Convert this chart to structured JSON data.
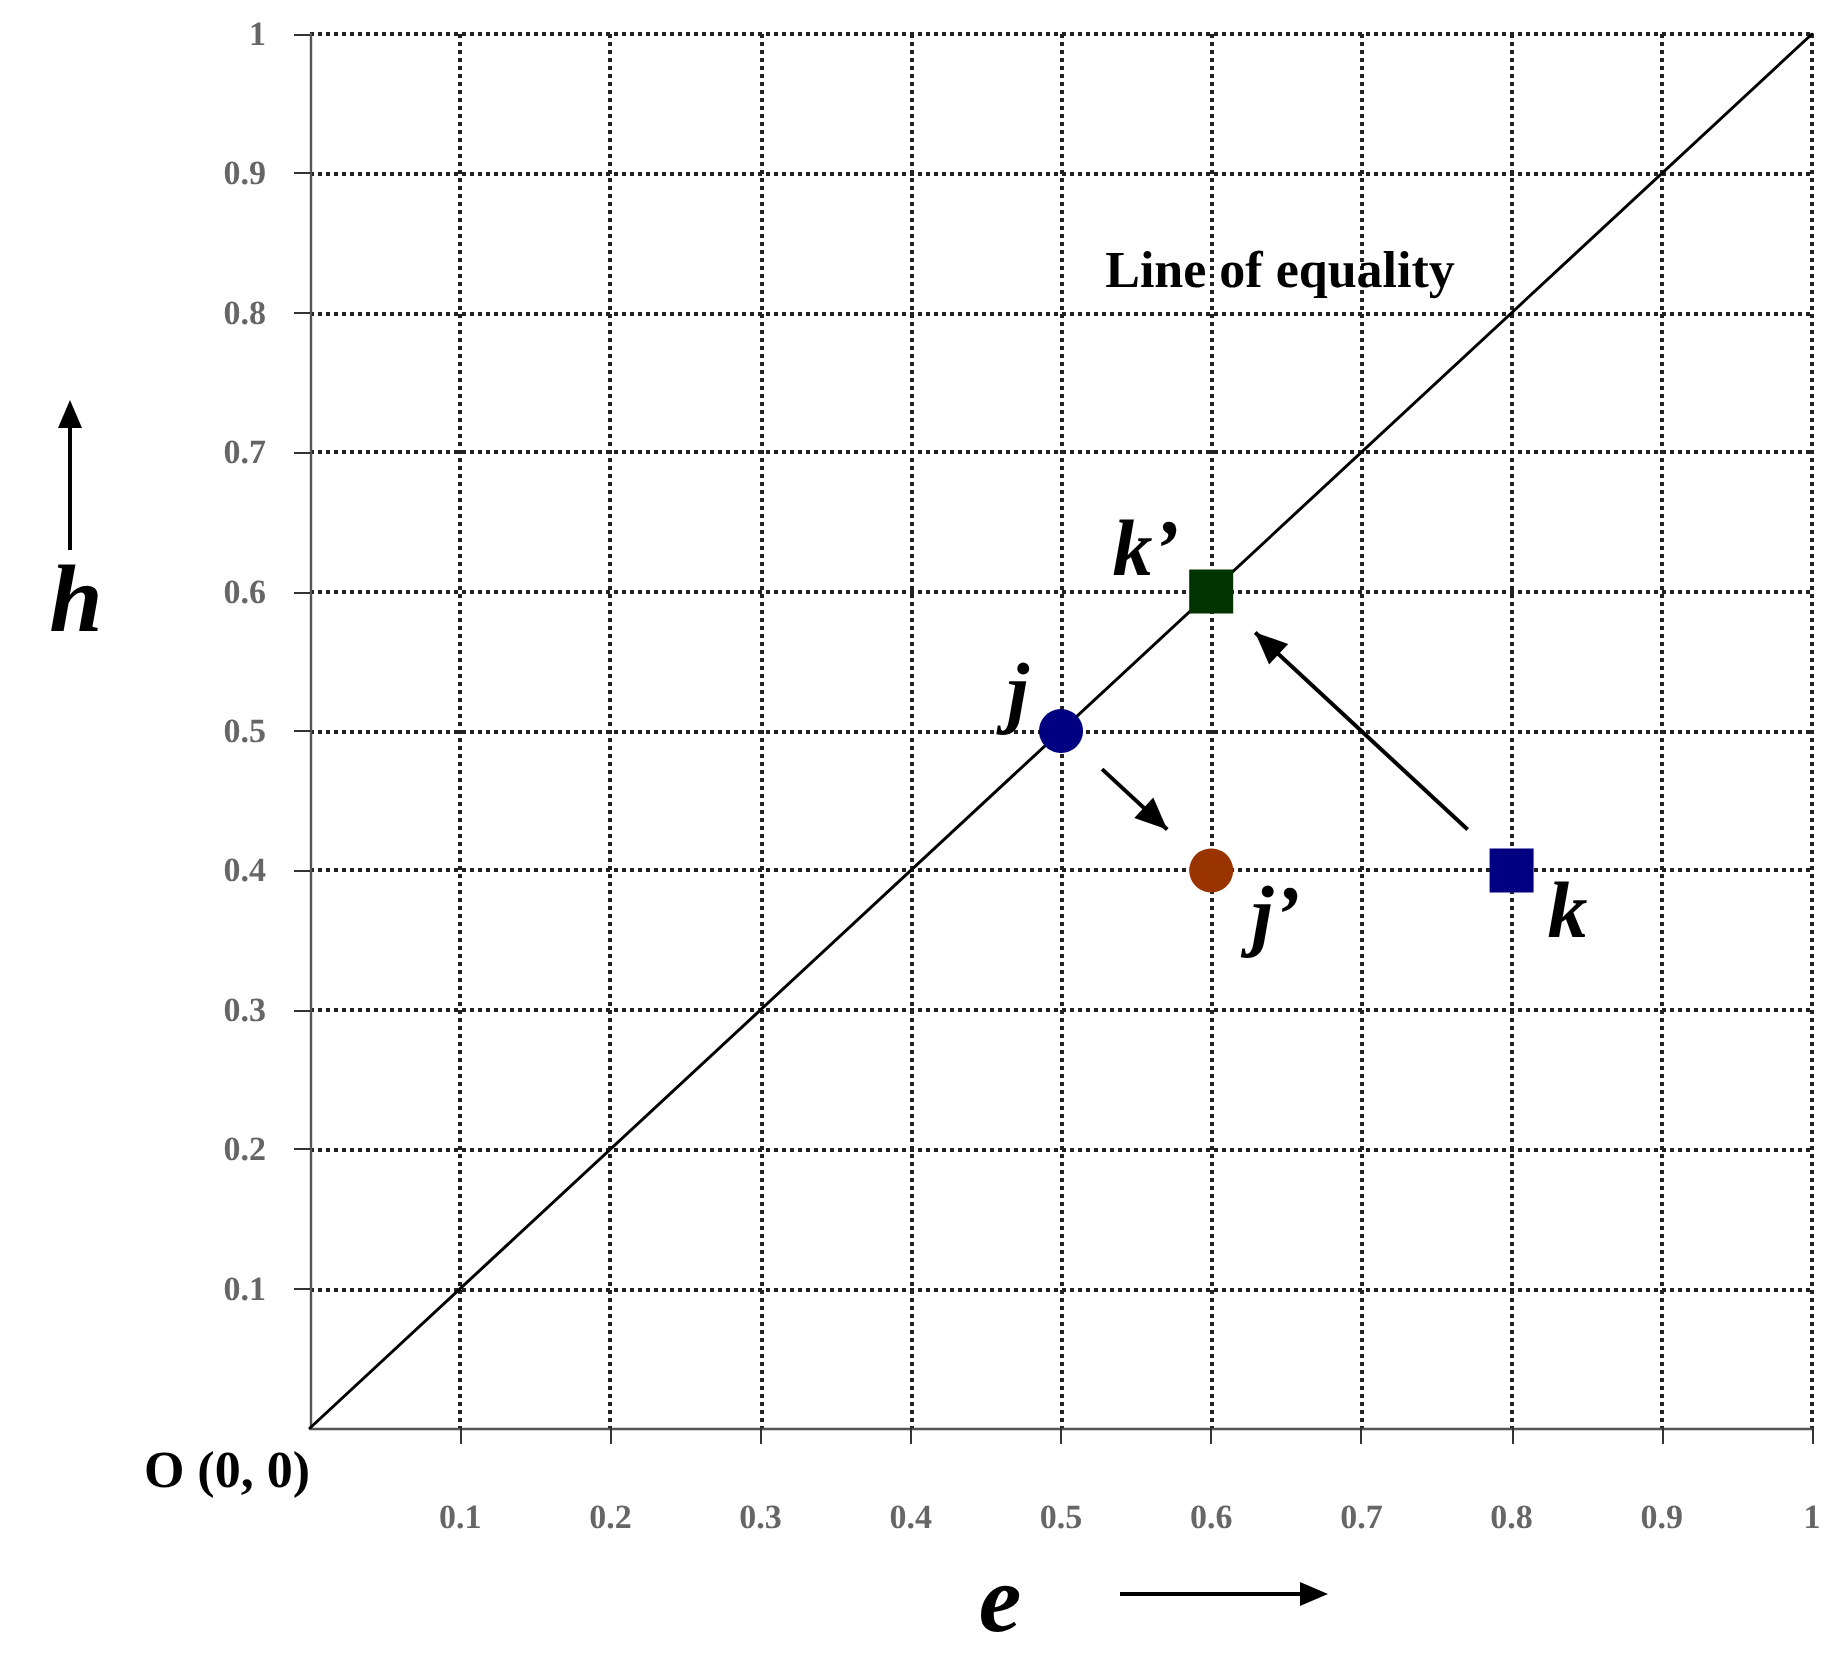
{
  "chart_data": {
    "type": "scatter",
    "xlabel": "e",
    "ylabel": "h",
    "xlim": [
      0,
      1
    ],
    "ylim": [
      0,
      1
    ],
    "xticks": [
      0.1,
      0.2,
      0.3,
      0.4,
      0.5,
      0.6,
      0.7,
      0.8,
      0.9,
      1
    ],
    "yticks": [
      0.1,
      0.2,
      0.3,
      0.4,
      0.5,
      0.6,
      0.7,
      0.8,
      0.9,
      1
    ],
    "grid": true,
    "series": [
      {
        "type": "line",
        "color": "#000000",
        "marker": "none",
        "line_style": "solid",
        "x": [
          0,
          1
        ],
        "values": [
          0,
          1
        ]
      },
      {
        "name": "j",
        "marker": "circle",
        "color": "#000080",
        "x": [
          0.5
        ],
        "values": [
          0.5
        ]
      },
      {
        "name": "j’",
        "marker": "circle",
        "color": "#993300",
        "x": [
          0.6
        ],
        "values": [
          0.4
        ]
      },
      {
        "name": "k",
        "marker": "square",
        "color": "#000080",
        "x": [
          0.8
        ],
        "values": [
          0.4
        ]
      },
      {
        "name": "k’",
        "marker": "square",
        "color": "#003300",
        "x": [
          0.6
        ],
        "values": [
          0.6
        ]
      }
    ],
    "annotations": [
      "Line of equality",
      {
        "text": "O (0, 0)",
        "x": 0,
        "y": 0
      }
    ]
  }
}
